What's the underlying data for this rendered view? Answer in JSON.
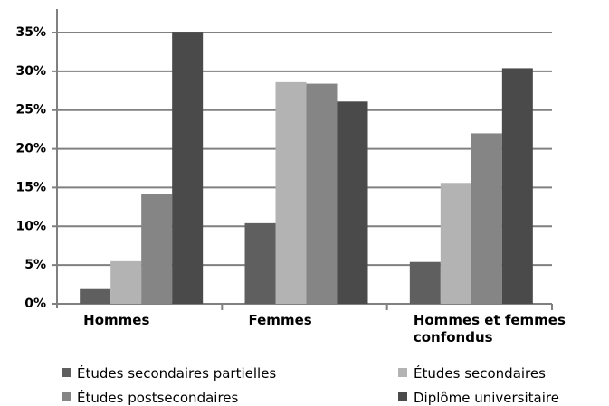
{
  "chart_data": {
    "type": "bar",
    "categories": [
      "Hommes",
      "Femmes",
      "Hommes et femmes confondus"
    ],
    "series": [
      {
        "name": "Études secondaires partielles",
        "color": "#5f5f5f",
        "values": [
          1.9,
          10.4,
          5.4
        ]
      },
      {
        "name": "Études secondaires",
        "color": "#b3b3b3",
        "values": [
          5.5,
          28.6,
          15.6
        ]
      },
      {
        "name": "Études postsecondaires",
        "color": "#858585",
        "values": [
          14.2,
          28.4,
          22.0
        ]
      },
      {
        "name": "Diplôme universitaire",
        "color": "#4a4a4a",
        "values": [
          35.1,
          26.1,
          30.4
        ]
      }
    ],
    "ylim": [
      0,
      35
    ],
    "yticks": [
      {
        "value": 0,
        "label": "0%"
      },
      {
        "value": 5,
        "label": "5%"
      },
      {
        "value": 10,
        "label": "10%"
      },
      {
        "value": 15,
        "label": "15%"
      },
      {
        "value": 20,
        "label": "20%"
      },
      {
        "value": 25,
        "label": "25%"
      },
      {
        "value": 30,
        "label": "30%"
      },
      {
        "value": 35,
        "label": "35%"
      }
    ],
    "grid": true
  }
}
